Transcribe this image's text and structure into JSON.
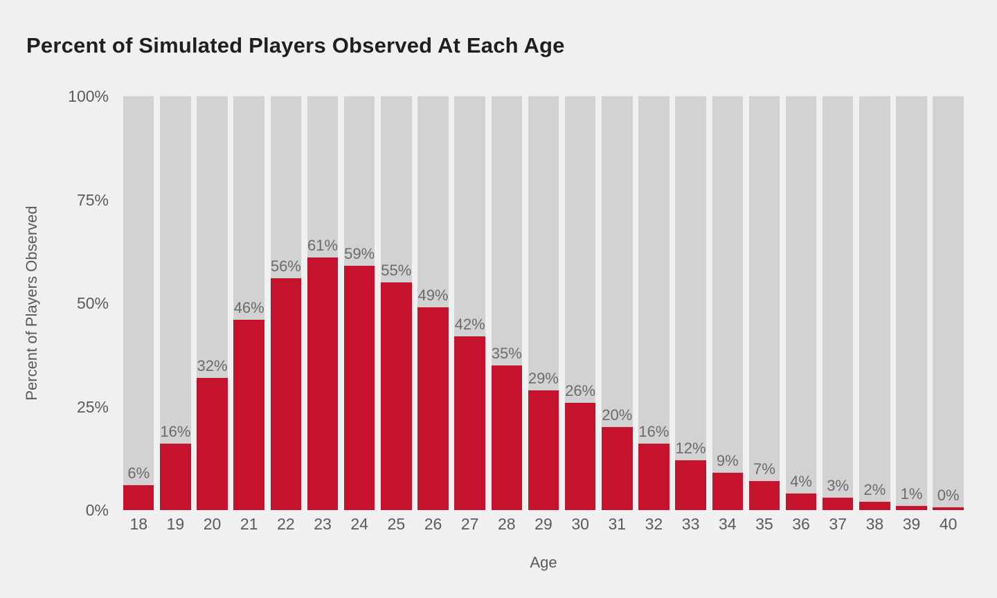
{
  "title": "Percent of Simulated Players Observed At Each Age",
  "chart_data": {
    "type": "bar",
    "title": "Percent of Simulated Players Observed At Each Age",
    "xlabel": "Age",
    "ylabel": "Percent of Players Observed",
    "categories": [
      18,
      19,
      20,
      21,
      22,
      23,
      24,
      25,
      26,
      27,
      28,
      29,
      30,
      31,
      32,
      33,
      34,
      35,
      36,
      37,
      38,
      39,
      40
    ],
    "values": [
      6,
      16,
      32,
      46,
      56,
      61,
      59,
      55,
      49,
      42,
      35,
      29,
      26,
      20,
      16,
      12,
      9,
      7,
      4,
      3,
      2,
      1,
      0
    ],
    "value_labels": [
      "6%",
      "16%",
      "32%",
      "46%",
      "56%",
      "61%",
      "59%",
      "55%",
      "49%",
      "42%",
      "35%",
      "29%",
      "26%",
      "20%",
      "16%",
      "12%",
      "9%",
      "7%",
      "4%",
      "3%",
      "2%",
      "1%",
      "0%"
    ],
    "ylim": [
      0,
      100
    ],
    "yticks": [
      0,
      25,
      50,
      75,
      100
    ],
    "ytick_labels": [
      "0%",
      "25%",
      "50%",
      "75%",
      "100%"
    ],
    "grid": false,
    "legend": "none",
    "colors": {
      "bar_fill": "#c5122d",
      "bar_track": "#d2d2d2",
      "background": "#f0f0f0",
      "title_text": "#1f1f1f",
      "axis_text": "#5a5a5a",
      "value_label_text": "#6b6b6b"
    }
  }
}
